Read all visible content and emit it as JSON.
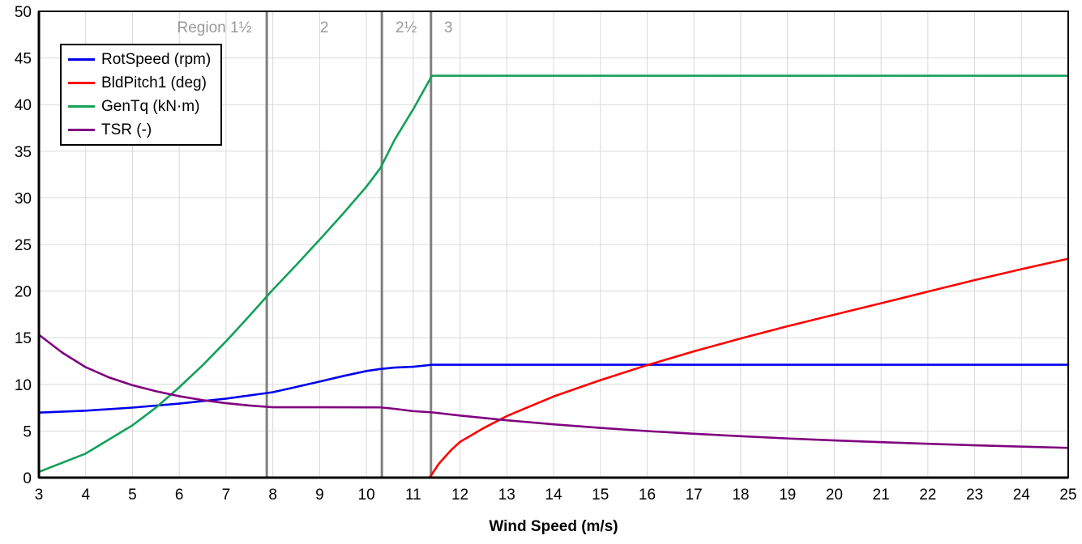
{
  "chart_data": {
    "type": "line",
    "title": "",
    "xlabel": "Wind Speed (m/s)",
    "ylabel": "",
    "xlim": [
      3,
      25
    ],
    "ylim": [
      0,
      50
    ],
    "x_ticks": [
      3,
      4,
      5,
      6,
      7,
      8,
      9,
      10,
      11,
      12,
      13,
      14,
      15,
      16,
      17,
      18,
      19,
      20,
      21,
      22,
      23,
      24,
      25
    ],
    "y_ticks": [
      0,
      5,
      10,
      15,
      20,
      25,
      30,
      35,
      40,
      45,
      50
    ],
    "grid": true,
    "grid_color": "#d9d9d9",
    "legend_position": "top-left",
    "region_color": "#808080",
    "region_label_color": "#999999",
    "region_lines": [
      {
        "x": 7.87
      },
      {
        "x": 10.33
      },
      {
        "x": 11.38
      }
    ],
    "region_labels": [
      {
        "text": "Region 1½",
        "x": 6.75
      },
      {
        "text": "2",
        "x": 9.1
      },
      {
        "text": "2½",
        "x": 10.85
      },
      {
        "text": "3",
        "x": 11.75
      }
    ],
    "series": [
      {
        "id": "rotspeed",
        "name": "RotSpeed (rpm)",
        "color": "#0000EE",
        "x": [
          3,
          4,
          5,
          6,
          7,
          8,
          8.5,
          9,
          9.5,
          10,
          10.3,
          10.6,
          11,
          11.4,
          25
        ],
        "y": [
          6.97,
          7.18,
          7.51,
          7.94,
          8.47,
          9.16,
          9.72,
          10.3,
          10.89,
          11.43,
          11.65,
          11.8,
          11.89,
          12.1,
          12.1
        ]
      },
      {
        "id": "bldpitch1",
        "name": "BldPitch1 (deg)",
        "color": "#FF0000",
        "x": [
          3,
          11.35,
          11.55,
          11.8,
          12,
          12.5,
          13,
          14,
          15,
          16,
          17,
          18,
          19,
          20,
          21,
          22,
          23,
          24,
          25
        ],
        "y": [
          0,
          0,
          1.5,
          2.9,
          3.83,
          5.3,
          6.6,
          8.7,
          10.45,
          12.06,
          13.54,
          14.92,
          16.23,
          17.47,
          18.7,
          19.94,
          21.18,
          22.35,
          23.47
        ]
      },
      {
        "id": "gentq",
        "name": "GenTq (kN·m)",
        "color": "#12A157",
        "x": [
          3,
          4,
          5,
          5.5,
          6,
          6.5,
          7,
          7.5,
          8,
          8.5,
          9,
          9.5,
          10,
          10.3,
          10.6,
          11,
          11.4,
          25
        ],
        "y": [
          0.61,
          2.58,
          5.61,
          7.5,
          9.69,
          12.05,
          14.62,
          17.35,
          20.15,
          22.8,
          25.51,
          28.3,
          31.2,
          33.2,
          36.2,
          39.5,
          43.09,
          43.09
        ]
      },
      {
        "id": "tsr",
        "name": "TSR (-)",
        "color": "#800080",
        "x": [
          3,
          3.5,
          4,
          4.5,
          5,
          5.5,
          6,
          6.5,
          7,
          7.5,
          8,
          9,
          10,
          10.3,
          10.6,
          11,
          11.4,
          12,
          13,
          14,
          15,
          16,
          17,
          18,
          19,
          20,
          21,
          22,
          23,
          24,
          25
        ],
        "y": [
          15.32,
          13.4,
          11.84,
          10.74,
          9.91,
          9.27,
          8.73,
          8.31,
          7.98,
          7.73,
          7.55,
          7.55,
          7.54,
          7.53,
          7.38,
          7.13,
          7.0,
          6.66,
          6.15,
          5.71,
          5.33,
          4.99,
          4.7,
          4.44,
          4.2,
          3.99,
          3.8,
          3.63,
          3.47,
          3.33,
          3.19
        ]
      }
    ]
  }
}
